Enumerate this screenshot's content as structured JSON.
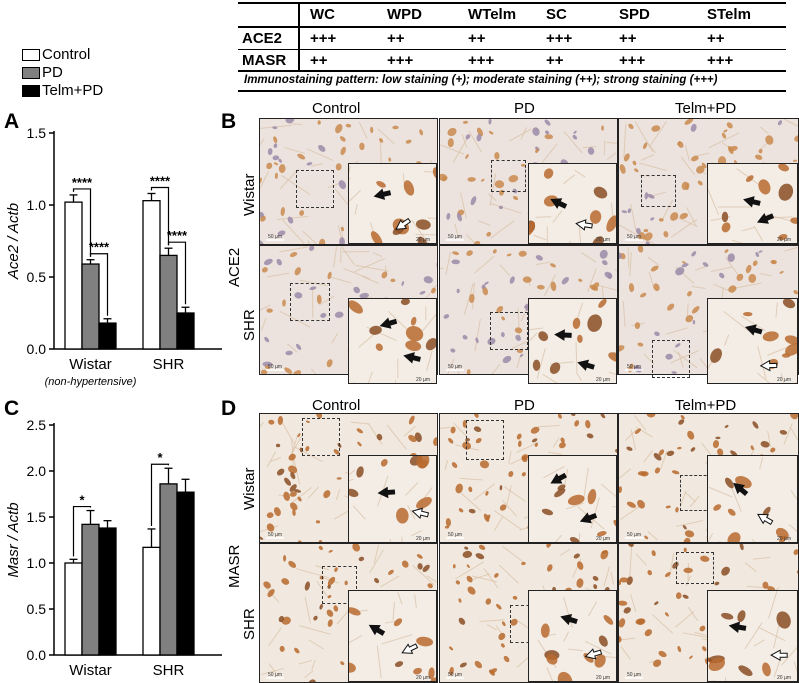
{
  "table": {
    "headers": [
      "WC",
      "WPD",
      "WTelm",
      "SC",
      "SPD",
      "STelm"
    ],
    "rows": [
      {
        "label": "ACE2",
        "values": [
          "+++",
          "++",
          "++",
          "+++",
          "++",
          "++"
        ]
      },
      {
        "label": "MASR",
        "values": [
          "++",
          "+++",
          "+++",
          "++",
          "+++",
          "+++"
        ]
      }
    ],
    "note": "Immunostaining pattern: low staining (+); moderate staining (++); strong staining (+++)"
  },
  "legend": [
    "Control",
    "PD",
    "Telm+PD"
  ],
  "colors": {
    "Control": "#ffffff",
    "PD": "#808080",
    "Telm+PD": "#000000"
  },
  "panels": {
    "A": "A",
    "B": "B",
    "C": "C",
    "D": "D"
  },
  "micrographs": {
    "col_heads": [
      "Control",
      "PD",
      "Telm+PD"
    ],
    "rows": [
      "Wistar",
      "SHR"
    ],
    "B_label": "ACE2",
    "D_label": "MASR",
    "scale_main": "50 µm",
    "scale_inset": "20 µm"
  },
  "chart_data": [
    {
      "type": "bar",
      "ylabel": "Ace2 / Actb",
      "categories": [
        "Wistar",
        "SHR"
      ],
      "category_sublabels": [
        "(non-hypertensive)",
        ""
      ],
      "ylim": [
        0,
        1.5
      ],
      "yticks": [
        "0.0",
        "0.5",
        "1.0",
        "1.5"
      ],
      "series": [
        {
          "name": "Control",
          "values": [
            1.02,
            1.03
          ],
          "errors": [
            0.05,
            0.05
          ]
        },
        {
          "name": "PD",
          "values": [
            0.59,
            0.65
          ],
          "errors": [
            0.03,
            0.05
          ]
        },
        {
          "name": "Telm+PD",
          "values": [
            0.18,
            0.25
          ],
          "errors": [
            0.03,
            0.04
          ]
        }
      ],
      "significance": [
        {
          "group": 0,
          "from": 0,
          "to": 1,
          "label": "****"
        },
        {
          "group": 0,
          "from": 1,
          "to": 2,
          "label": "****"
        },
        {
          "group": 1,
          "from": 0,
          "to": 1,
          "label": "****"
        },
        {
          "group": 1,
          "from": 1,
          "to": 2,
          "label": "****"
        }
      ]
    },
    {
      "type": "bar",
      "ylabel": "Masr / Actb",
      "categories": [
        "Wistar",
        "SHR"
      ],
      "category_sublabels": [
        "(non-hypertensive)",
        ""
      ],
      "ylim": [
        0,
        2.5
      ],
      "yticks": [
        "0.0",
        "0.5",
        "1.0",
        "1.5",
        "2.0",
        "2.5"
      ],
      "series": [
        {
          "name": "Control",
          "values": [
            1.0,
            1.17
          ],
          "errors": [
            0.04,
            0.2
          ]
        },
        {
          "name": "PD",
          "values": [
            1.42,
            1.86
          ],
          "errors": [
            0.15,
            0.17
          ]
        },
        {
          "name": "Telm+PD",
          "values": [
            1.38,
            1.77
          ],
          "errors": [
            0.08,
            0.14
          ]
        }
      ],
      "significance": [
        {
          "group": 0,
          "from": 0,
          "to": 1,
          "label": "*"
        },
        {
          "group": 1,
          "from": 0,
          "to": 1,
          "label": "*"
        }
      ]
    }
  ]
}
